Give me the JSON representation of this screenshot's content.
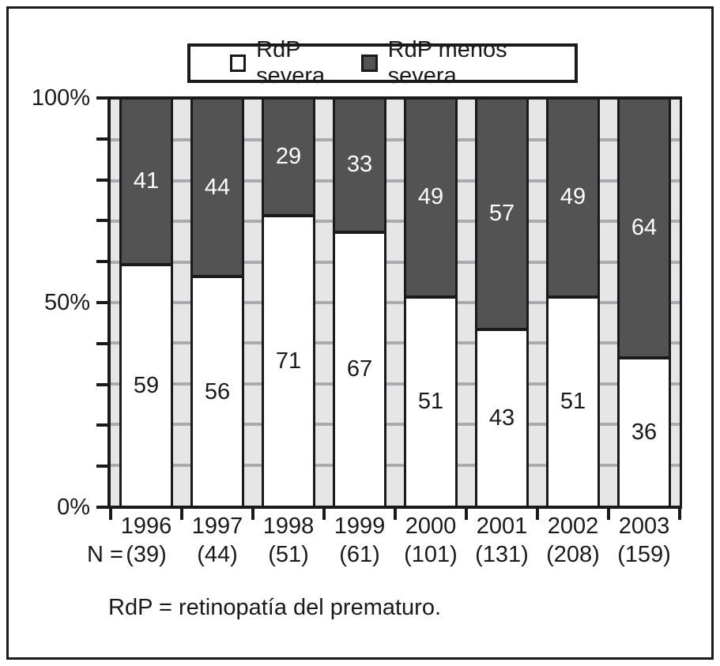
{
  "figure": {
    "n_prefix": "N =",
    "footnote": "RdP = retinopatía del prematuro."
  },
  "chart_data": {
    "type": "bar",
    "stacked": true,
    "unit": "percent",
    "title": "",
    "xlabel": "",
    "ylabel": "",
    "categories": [
      "1996",
      "1997",
      "1998",
      "1999",
      "2000",
      "2001",
      "2002",
      "2003"
    ],
    "n_labels": [
      "(39)",
      "(44)",
      "(51)",
      "(61)",
      "(101)",
      "(131)",
      "(208)",
      "(159)"
    ],
    "series": [
      {
        "name": "RdP severa",
        "color": "#ffffff",
        "values": [
          59,
          56,
          71,
          67,
          51,
          43,
          51,
          36
        ]
      },
      {
        "name": "RdP menos severa",
        "color": "#535353",
        "values": [
          41,
          44,
          29,
          33,
          49,
          57,
          49,
          64
        ]
      }
    ],
    "ylim": [
      0,
      100
    ],
    "y_tick_step": 10,
    "y_tick_labels": [
      "100%",
      "50%",
      "0%"
    ],
    "legend_position": "top",
    "grid": "horizontal",
    "colors": {
      "plot_background": "#e6e6e6",
      "gridline": "#a9abaf",
      "axis": "#1a1a1a",
      "dark_segment": "#535353",
      "light_segment": "#ffffff"
    }
  }
}
